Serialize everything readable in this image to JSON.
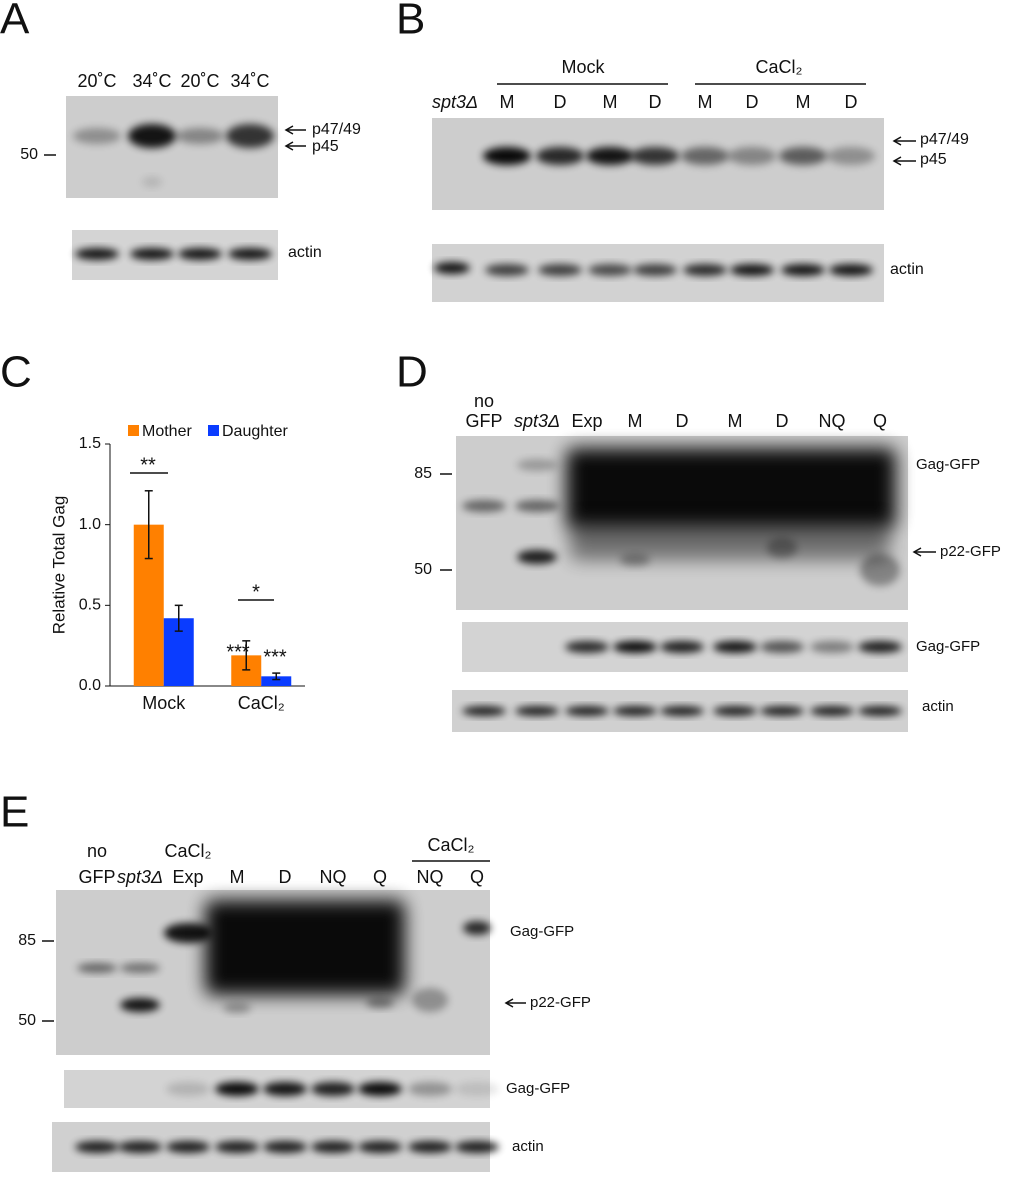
{
  "panels": {
    "A": {
      "letter": "A",
      "lanes": [
        "20˚C",
        "34˚C",
        "20˚C",
        "34˚C"
      ],
      "marker": "50",
      "arrows": [
        "p47/49",
        "p45"
      ],
      "loading": "actin"
    },
    "B": {
      "letter": "B",
      "groups": [
        "Mock",
        "CaCl₂"
      ],
      "strain": "spt3Δ",
      "lanes": [
        "M",
        "D",
        "M",
        "D",
        "M",
        "D",
        "M",
        "D"
      ],
      "arrows": [
        "p47/49",
        "p45"
      ],
      "loading": "actin"
    },
    "C": {
      "letter": "C"
    },
    "D": {
      "letter": "D",
      "lanes": [
        [
          "no",
          "GFP"
        ],
        [
          "spt3Δ"
        ],
        [
          "Exp"
        ],
        [
          "M"
        ],
        [
          "D"
        ],
        [
          "M"
        ],
        [
          "D"
        ],
        [
          "NQ"
        ],
        [
          "Q"
        ]
      ],
      "markers": [
        "85",
        "50"
      ],
      "labels": [
        "Gag-GFP",
        "p22-GFP",
        "Gag-GFP",
        "actin"
      ]
    },
    "E": {
      "letter": "E",
      "lanes": [
        [
          "no",
          "GFP"
        ],
        [
          "spt3Δ"
        ],
        [
          "CaCl₂",
          "Exp"
        ],
        [
          "M"
        ],
        [
          "D"
        ],
        [
          "NQ"
        ],
        [
          "Q"
        ],
        [
          "NQ"
        ],
        [
          "Q"
        ]
      ],
      "group": "CaCl₂",
      "markers": [
        "85",
        "50"
      ],
      "labels": [
        "Gag-GFP",
        "p22-GFP",
        "Gag-GFP",
        "actin"
      ]
    }
  },
  "chart_data": {
    "type": "bar",
    "y_label": "Relative Total Gag",
    "categories": [
      "Mock",
      "CaCl₂"
    ],
    "series": [
      {
        "name": "Mother",
        "color": "#ff8000",
        "values": [
          1.0,
          0.19
        ],
        "errors": [
          0.21,
          0.09
        ]
      },
      {
        "name": "Daughter",
        "color": "#0a3cff",
        "values": [
          0.42,
          0.06
        ],
        "errors": [
          0.08,
          0.02
        ]
      }
    ],
    "ylim": [
      0,
      1.5
    ],
    "yticks": [
      {
        "value": 0,
        "label": "0.0"
      },
      0.5,
      {
        "value": 1,
        "label": "1.0"
      },
      1.5
    ],
    "annotations": [
      "**",
      "*",
      "***",
      "***"
    ]
  }
}
